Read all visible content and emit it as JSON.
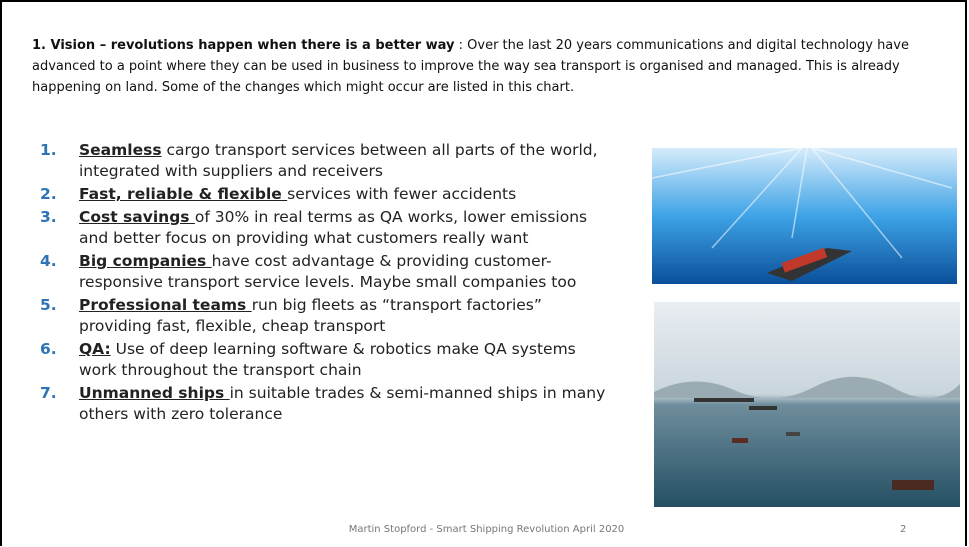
{
  "intro": {
    "bold": "1. Vision – revolutions happen when there is a better way",
    "text": " : Over the last 20 years communications and digital technology have advanced to a point where they can be used in business to improve the way sea transport is organised and managed. This is already happening on land. Some of the changes which might occur are listed in this chart."
  },
  "items": [
    {
      "number": "1.",
      "bold": "Seamless",
      "text": " cargo transport services between all parts of the world, integrated with suppliers and receivers"
    },
    {
      "number": "2.",
      "bold": "Fast, reliable & flexible ",
      "text": "services with fewer accidents"
    },
    {
      "number": "3.",
      "bold": "Cost savings ",
      "text": "of 30% in real terms as QA works, lower emissions and better focus on providing what customers really want"
    },
    {
      "number": "4.",
      "bold": "Big companies ",
      "text": "have cost advantage & providing customer-responsive transport service levels. Maybe small companies too"
    },
    {
      "number": "5.",
      "bold": "Professional teams ",
      "text": "run big fleets as “transport factories” providing fast, flexible, cheap transport"
    },
    {
      "number": "6.",
      "bold": "QA:",
      "text": " Use of deep learning software & robotics make QA systems work throughout the transport chain"
    },
    {
      "number": "7.",
      "bold": "Unmanned ships ",
      "text": "in suitable trades & semi-manned ships in many others with zero tolerance"
    }
  ],
  "footer": {
    "text": "Martin Stopford - Smart Shipping Revolution April 2020",
    "page": "2"
  }
}
